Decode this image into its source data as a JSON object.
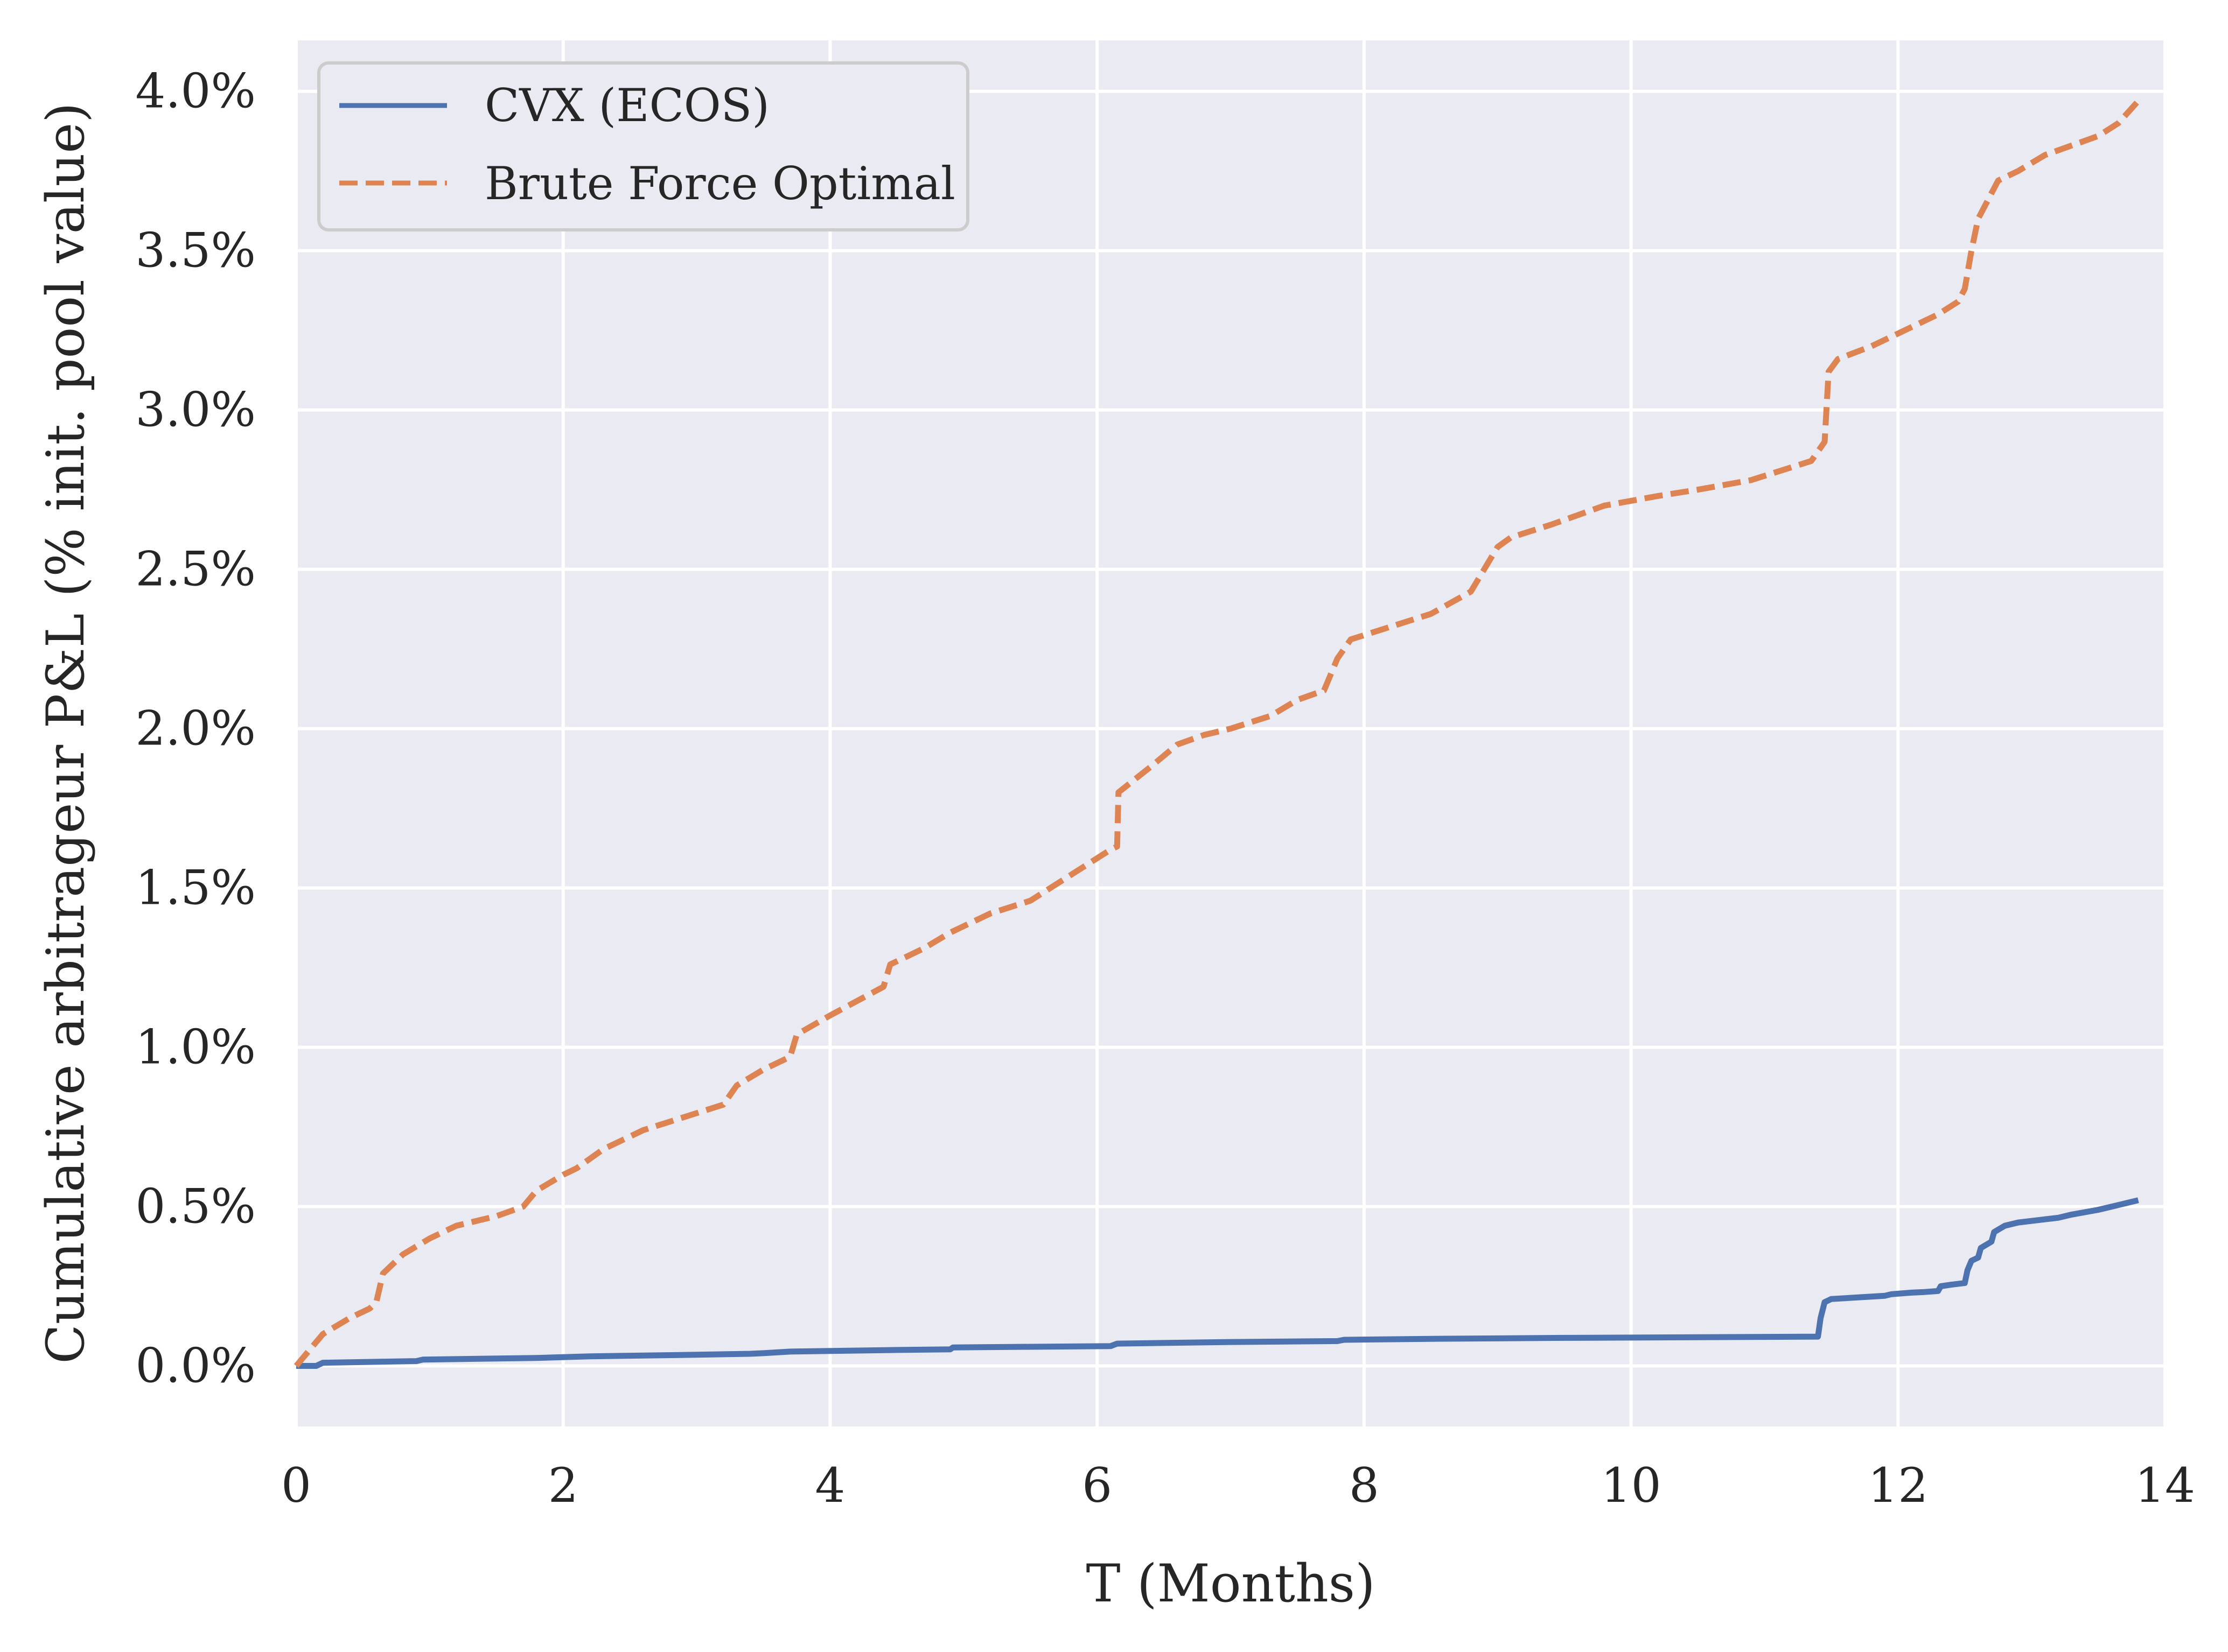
{
  "chart_data": {
    "type": "line",
    "xlabel": "T (Months)",
    "ylabel": "Cumulative arbitrageur P&L (% init. pool value)",
    "xlim": [
      0,
      14
    ],
    "ylim": [
      -0.19,
      4.16
    ],
    "x_ticks": [
      0,
      2,
      4,
      6,
      8,
      10,
      12,
      14
    ],
    "y_ticks": [
      0.0,
      0.5,
      1.0,
      1.5,
      2.0,
      2.5,
      3.0,
      3.5,
      4.0
    ],
    "x_tick_labels": [
      "0",
      "2",
      "4",
      "6",
      "8",
      "10",
      "12",
      "14"
    ],
    "y_tick_labels": [
      "0.0%",
      "0.5%",
      "1.0%",
      "1.5%",
      "2.0%",
      "2.5%",
      "3.0%",
      "3.5%",
      "4.0%"
    ],
    "grid": true,
    "legend_position": "top-left",
    "background": "#eaeaf2",
    "series": [
      {
        "name": "CVX (ECOS)",
        "color": "#4c72b0",
        "style": "solid",
        "x": [
          0,
          0.15,
          0.2,
          0.9,
          0.95,
          1.8,
          2.2,
          2.5,
          3.0,
          3.4,
          3.5,
          3.7,
          4.0,
          4.5,
          4.9,
          4.92,
          5.5,
          6.1,
          6.15,
          7.0,
          7.8,
          7.85,
          8.5,
          9.5,
          10.5,
          11.4,
          11.42,
          11.45,
          11.5,
          11.7,
          11.9,
          11.95,
          12.1,
          12.2,
          12.3,
          12.32,
          12.4,
          12.5,
          12.52,
          12.55,
          12.6,
          12.62,
          12.7,
          12.72,
          12.8,
          12.85,
          12.9,
          13.0,
          13.1,
          13.2,
          13.3,
          13.5,
          13.6,
          13.8
        ],
        "y": [
          0.0,
          0.0,
          0.01,
          0.015,
          0.02,
          0.025,
          0.03,
          0.032,
          0.035,
          0.038,
          0.04,
          0.045,
          0.047,
          0.05,
          0.052,
          0.058,
          0.06,
          0.062,
          0.07,
          0.075,
          0.078,
          0.082,
          0.085,
          0.088,
          0.09,
          0.092,
          0.15,
          0.2,
          0.21,
          0.215,
          0.22,
          0.225,
          0.23,
          0.232,
          0.235,
          0.25,
          0.255,
          0.26,
          0.3,
          0.33,
          0.34,
          0.37,
          0.39,
          0.42,
          0.44,
          0.445,
          0.45,
          0.455,
          0.46,
          0.465,
          0.475,
          0.49,
          0.5,
          0.52
        ]
      },
      {
        "name": "Brute Force Optimal",
        "color": "#dd8452",
        "style": "dashed",
        "x": [
          0,
          0.1,
          0.2,
          0.4,
          0.55,
          0.6,
          0.65,
          0.8,
          1.0,
          1.2,
          1.5,
          1.7,
          1.8,
          2.0,
          2.1,
          2.3,
          2.6,
          2.9,
          3.2,
          3.3,
          3.5,
          3.6,
          3.7,
          3.75,
          4.0,
          4.4,
          4.45,
          4.7,
          4.9,
          5.2,
          5.5,
          5.8,
          6.1,
          6.15,
          6.16,
          6.4,
          6.6,
          6.8,
          7.0,
          7.3,
          7.5,
          7.7,
          7.8,
          7.9,
          8.2,
          8.5,
          8.8,
          8.9,
          9.0,
          9.1,
          9.4,
          9.8,
          10.2,
          10.5,
          10.9,
          11.2,
          11.35,
          11.45,
          11.48,
          11.55,
          11.8,
          12.0,
          12.3,
          12.45,
          12.5,
          12.55,
          12.6,
          12.7,
          12.75,
          12.8,
          12.9,
          13.1,
          13.5,
          13.65,
          13.8
        ],
        "y": [
          0.0,
          0.05,
          0.1,
          0.15,
          0.18,
          0.2,
          0.29,
          0.35,
          0.4,
          0.44,
          0.47,
          0.5,
          0.55,
          0.6,
          0.62,
          0.68,
          0.74,
          0.78,
          0.82,
          0.88,
          0.93,
          0.95,
          0.97,
          1.04,
          1.1,
          1.19,
          1.26,
          1.31,
          1.36,
          1.42,
          1.46,
          1.54,
          1.62,
          1.63,
          1.8,
          1.88,
          1.95,
          1.98,
          2.0,
          2.04,
          2.09,
          2.12,
          2.22,
          2.28,
          2.32,
          2.36,
          2.43,
          2.5,
          2.57,
          2.6,
          2.64,
          2.7,
          2.73,
          2.75,
          2.78,
          2.82,
          2.84,
          2.9,
          3.12,
          3.16,
          3.2,
          3.24,
          3.3,
          3.34,
          3.38,
          3.5,
          3.6,
          3.68,
          3.72,
          3.73,
          3.75,
          3.8,
          3.86,
          3.9,
          3.97
        ]
      }
    ]
  }
}
